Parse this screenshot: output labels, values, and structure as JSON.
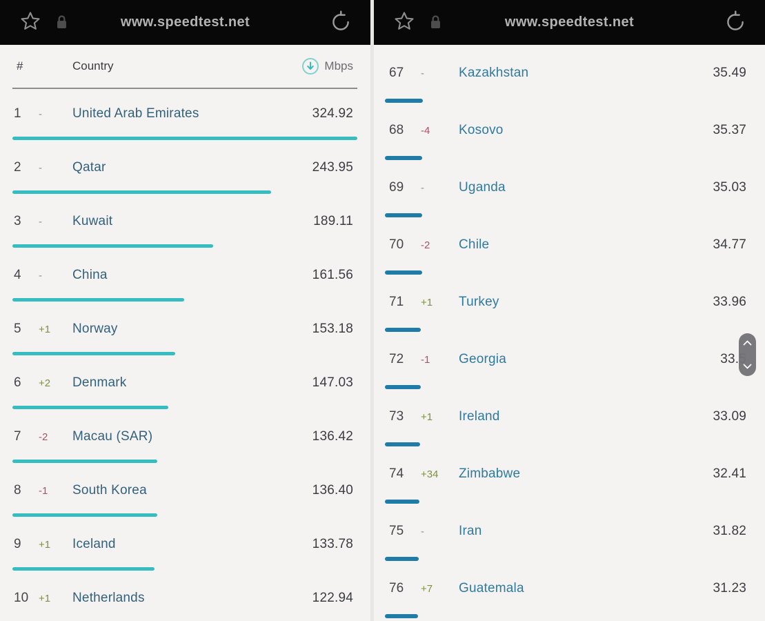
{
  "browser": {
    "url": "www.speedtest.net"
  },
  "table": {
    "header": {
      "rank": "#",
      "country": "Country",
      "unit": "Mbps"
    },
    "max_mbps": 324.92,
    "left_rows": [
      {
        "rank": "1",
        "change": "-",
        "direction": "none",
        "country": "United Arab Emirates",
        "value": "324.92"
      },
      {
        "rank": "2",
        "change": "-",
        "direction": "none",
        "country": "Qatar",
        "value": "243.95"
      },
      {
        "rank": "3",
        "change": "-",
        "direction": "none",
        "country": "Kuwait",
        "value": "189.11"
      },
      {
        "rank": "4",
        "change": "-",
        "direction": "none",
        "country": "China",
        "value": "161.56"
      },
      {
        "rank": "5",
        "change": "+1",
        "direction": "up",
        "country": "Norway",
        "value": "153.18"
      },
      {
        "rank": "6",
        "change": "+2",
        "direction": "up",
        "country": "Denmark",
        "value": "147.03"
      },
      {
        "rank": "7",
        "change": "-2",
        "direction": "down",
        "country": "Macau (SAR)",
        "value": "136.42"
      },
      {
        "rank": "8",
        "change": "-1",
        "direction": "down",
        "country": "South Korea",
        "value": "136.40"
      },
      {
        "rank": "9",
        "change": "+1",
        "direction": "up",
        "country": "Iceland",
        "value": "133.78"
      },
      {
        "rank": "10",
        "change": "+1",
        "direction": "up",
        "country": "Netherlands",
        "value": "122.94"
      }
    ],
    "right_rows": [
      {
        "rank": "67",
        "change": "-",
        "direction": "none",
        "country": "Kazakhstan",
        "value": "35.49"
      },
      {
        "rank": "68",
        "change": "-4",
        "direction": "down",
        "country": "Kosovo",
        "value": "35.37"
      },
      {
        "rank": "69",
        "change": "-",
        "direction": "none",
        "country": "Uganda",
        "value": "35.03"
      },
      {
        "rank": "70",
        "change": "-2",
        "direction": "down",
        "country": "Chile",
        "value": "34.77"
      },
      {
        "rank": "71",
        "change": "+1",
        "direction": "up",
        "country": "Turkey",
        "value": "33.96"
      },
      {
        "rank": "72",
        "change": "-1",
        "direction": "down",
        "country": "Georgia",
        "value": "33.5"
      },
      {
        "rank": "73",
        "change": "+1",
        "direction": "up",
        "country": "Ireland",
        "value": "33.09"
      },
      {
        "rank": "74",
        "change": "+34",
        "direction": "up",
        "country": "Zimbabwe",
        "value": "32.41"
      },
      {
        "rank": "75",
        "change": "-",
        "direction": "none",
        "country": "Iran",
        "value": "31.82"
      },
      {
        "rank": "76",
        "change": "+7",
        "direction": "up",
        "country": "Guatemala",
        "value": "31.23"
      }
    ]
  },
  "colors": {
    "left_bar": "#35bdc1",
    "right_bar": "#1f7ca8",
    "rank_up": "#7d9143",
    "rank_down": "#ae5265",
    "country_left": "#33607c",
    "country_right": "#2e7aa1",
    "urlbar_bg": "#080808",
    "page_bg": "#f4f3f1"
  },
  "scroll_widget": {
    "visible": true
  }
}
